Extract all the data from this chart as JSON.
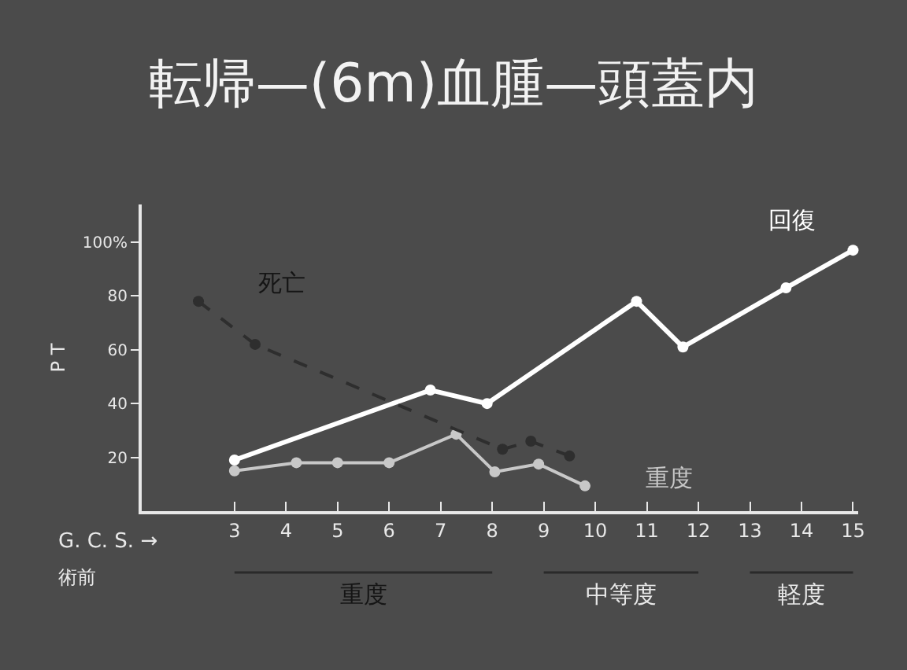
{
  "chart_data": {
    "type": "line",
    "title": "転帰—(6m)血腫—頭蓋内",
    "xlabel": "G. C. S. →",
    "ylabel": "P T",
    "annotations": [
      "術前",
      "重度",
      "中等度",
      "軽度"
    ],
    "xlim": [
      1.2,
      15.1
    ],
    "xticks": [
      3,
      4,
      5,
      6,
      7,
      8,
      9,
      10,
      11,
      12,
      13,
      14,
      15
    ],
    "ylim": [
      0,
      114
    ],
    "yticks": [
      20,
      40,
      60,
      {
        "value": 100,
        "label": "100%"
      },
      80
    ],
    "grid": false,
    "legend": false,
    "marker": "circle",
    "series": [
      {
        "name": "回復",
        "color": "#ffffff",
        "line_style": "solid",
        "x": [
          3,
          6.8,
          7.9,
          10.8,
          11.7,
          13.7,
          15
        ],
        "values": [
          19,
          45,
          40,
          78,
          61,
          83,
          97
        ]
      },
      {
        "name": "重度",
        "color": "#c8c8c8",
        "line_style": "solid",
        "x": [
          3,
          4.2,
          5,
          6,
          7.3,
          8.05,
          8.9,
          9.8
        ],
        "values": [
          15,
          18,
          18,
          18,
          28.6,
          14.6,
          17.5,
          9.4
        ]
      },
      {
        "name": "死亡",
        "color": "#2e2e2e",
        "line_style": "dashed",
        "x": [
          2.3,
          3.4,
          8.2,
          8.75,
          9.5
        ],
        "values": [
          78,
          62,
          23,
          26,
          20.5
        ]
      }
    ]
  }
}
